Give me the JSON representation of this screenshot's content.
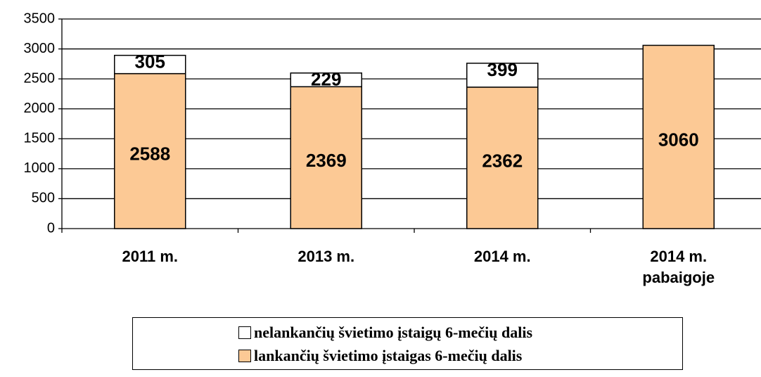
{
  "chart_data": {
    "type": "stacked_bar",
    "categories": [
      "2011 m.",
      "2013 m.",
      "2014 m.",
      "2014 m. pabaigoje"
    ],
    "series": [
      {
        "name": "lankančių švietimo įstaigas 6-mečių dalis",
        "color": "#fcc995",
        "values": [
          2588,
          2369,
          2362,
          3060
        ]
      },
      {
        "name": "nelankančių švietimo įstaigų 6-mečių dalis",
        "color": "#ffffff",
        "values": [
          305,
          229,
          399,
          null
        ]
      }
    ],
    "ylim": [
      0,
      3500
    ],
    "yticks": [
      0,
      500,
      1000,
      1500,
      2000,
      2500,
      3000,
      3500
    ],
    "grid": true,
    "legend": "bottom"
  }
}
